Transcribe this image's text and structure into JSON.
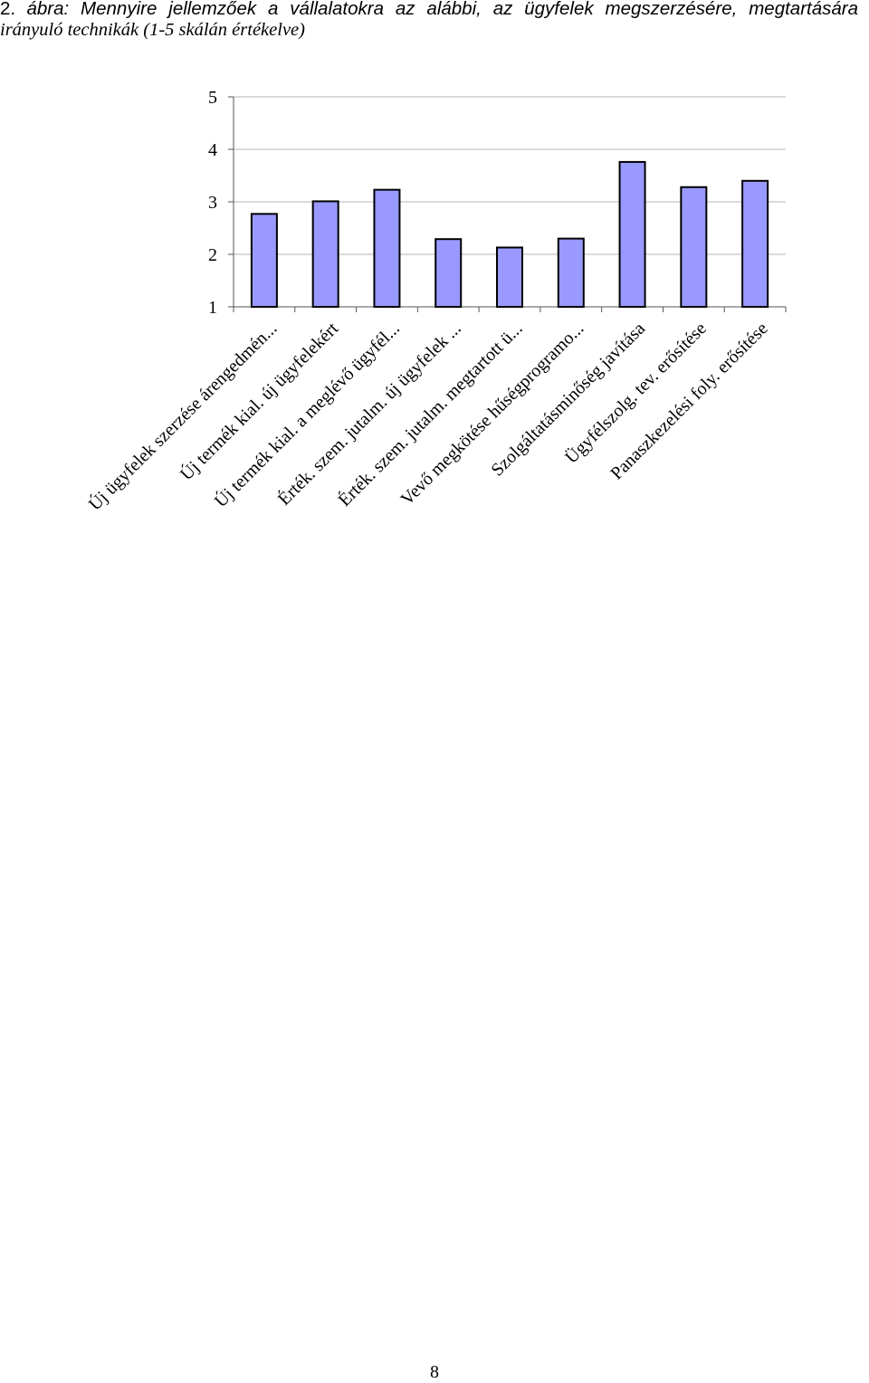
{
  "caption": {
    "number": "2.",
    "line1": "ábra: Mennyire jellemzőek a vállalatokra az alábbi, az ügyfelek megszerzésére, megtartására",
    "line2": "irányuló technikák (1-5 skálán értékelve)"
  },
  "page_number": "8",
  "chart_data": {
    "type": "bar",
    "title": "",
    "xlabel": "",
    "ylabel": "",
    "ylim": [
      1,
      5
    ],
    "yticks": [
      "1",
      "2",
      "3",
      "4",
      "5"
    ],
    "grid": true,
    "legend": "none",
    "bar_color": "#9999ff",
    "categories": [
      "Új ügyfelek szerzése árengedmén...",
      "Új termék kial. új ügyfelekért",
      "Új termék kial. a meglévő ügyfél...",
      "Érték. szem. jutalm. új ügyfelek ...",
      "Érték. szem. jutalm. megtartott ü...",
      "Vevő megkötése hűségprogramo...",
      "Szolgáltatásminőség javítása",
      "Ügyfélszolg. tev. erősítése",
      "Panaszkezelési foly. erősítése"
    ],
    "values": [
      2.77,
      3.01,
      3.23,
      2.29,
      2.13,
      2.3,
      3.76,
      3.28,
      3.4
    ]
  }
}
